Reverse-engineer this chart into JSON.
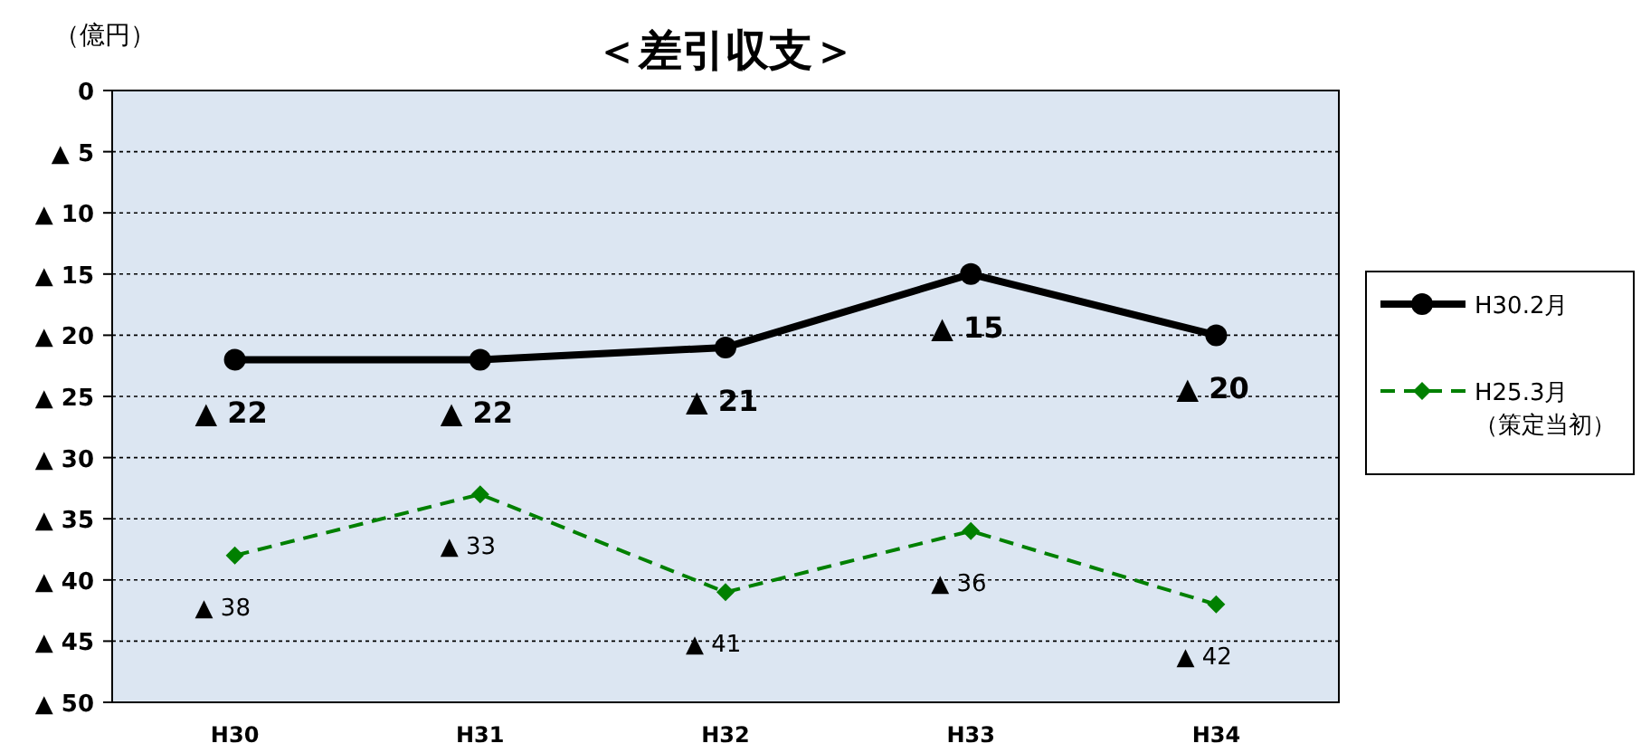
{
  "chart_data": {
    "type": "line",
    "title": "＜差引収支＞",
    "ylabel": "（億円）",
    "categories": [
      "H30",
      "H31",
      "H32",
      "H33",
      "H34"
    ],
    "ylim": [
      50,
      0
    ],
    "yticks": [
      {
        "value": 0,
        "label": "0"
      },
      {
        "value": 5,
        "label": "▲ 5"
      },
      {
        "value": 10,
        "label": "▲ 10"
      },
      {
        "value": 15,
        "label": "▲ 15"
      },
      {
        "value": 20,
        "label": "▲ 20"
      },
      {
        "value": 25,
        "label": "▲ 25"
      },
      {
        "value": 30,
        "label": "▲ 30"
      },
      {
        "value": 35,
        "label": "▲ 35"
      },
      {
        "value": 40,
        "label": "▲ 40"
      },
      {
        "value": 45,
        "label": "▲ 45"
      },
      {
        "value": 50,
        "label": "▲ 50"
      }
    ],
    "grid": "y",
    "legend": "right",
    "series": [
      {
        "name": "H30.2月",
        "color": "#000000",
        "marker": "circle",
        "line_style": "solid",
        "values": [
          22,
          22,
          21,
          15,
          20
        ],
        "value_labels": [
          "▲ 22",
          "▲ 22",
          "▲ 21",
          "▲ 15",
          "▲ 20"
        ]
      },
      {
        "name": "H25.3月（策定当初）",
        "color": "#008000",
        "marker": "diamond",
        "line_style": "dashed",
        "values": [
          38,
          33,
          41,
          36,
          42
        ],
        "value_labels": [
          "▲ 38",
          "▲ 33",
          "▲ 41",
          "▲ 36",
          "▲ 42"
        ]
      }
    ]
  }
}
